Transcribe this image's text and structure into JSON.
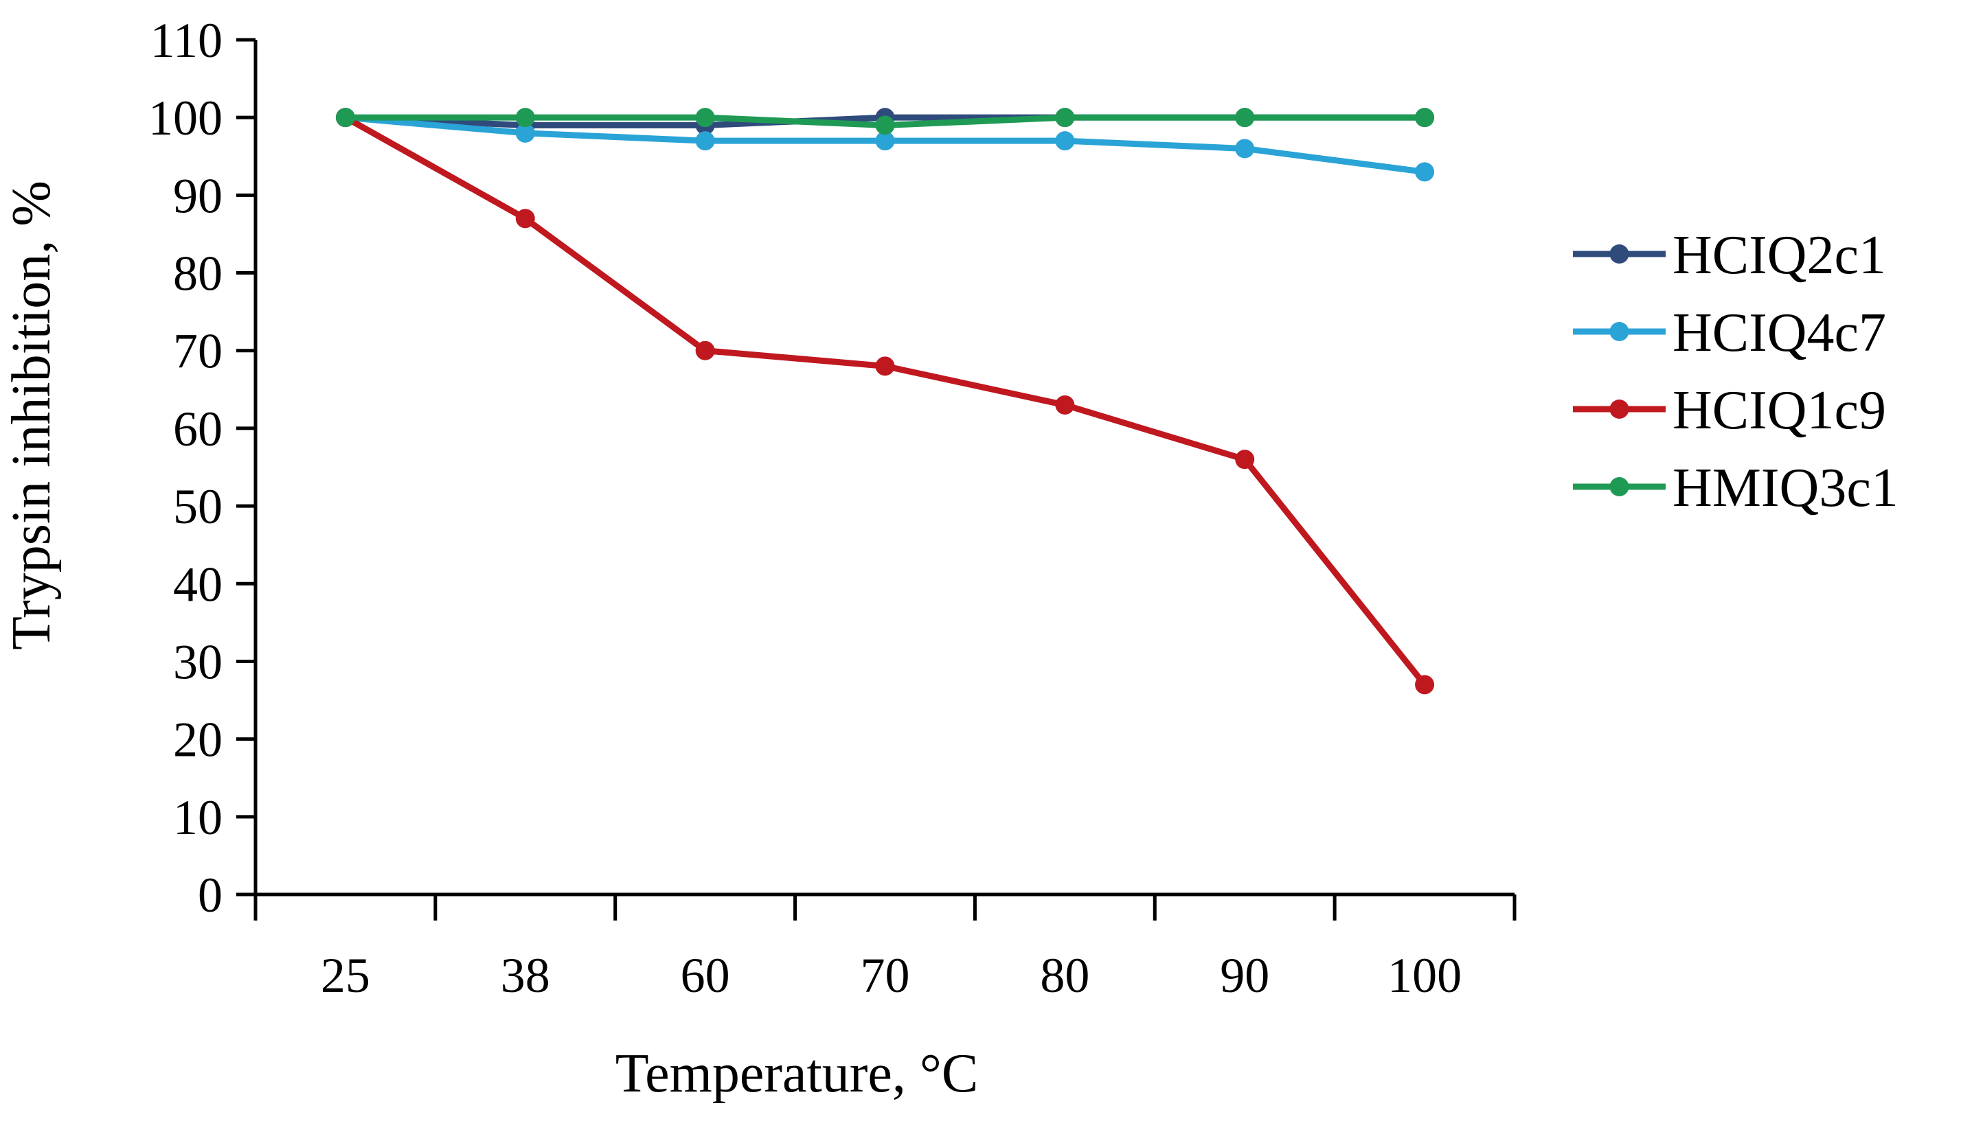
{
  "chart_data": {
    "type": "line",
    "title": "",
    "xlabel": "Temperature, °C",
    "ylabel": "Trypsin inhibition, %",
    "categories": [
      "25",
      "38",
      "60",
      "70",
      "80",
      "90",
      "100"
    ],
    "ylim": [
      0,
      110
    ],
    "yticks": [
      0,
      10,
      20,
      30,
      40,
      50,
      60,
      70,
      80,
      90,
      100,
      110
    ],
    "grid": false,
    "legend": "right",
    "series": [
      {
        "name": "HCIQ2c1",
        "color": "#2f4b7c",
        "values": [
          100,
          99,
          99,
          100,
          100,
          100,
          100
        ]
      },
      {
        "name": "HCIQ4c7",
        "color": "#2aa3d6",
        "values": [
          100,
          98,
          97,
          97,
          97,
          96,
          93
        ]
      },
      {
        "name": "HCIQ1c9",
        "color": "#c0181f",
        "values": [
          100,
          87,
          70,
          68,
          63,
          56,
          27
        ]
      },
      {
        "name": "HMIQ3c1",
        "color": "#1f9a55",
        "values": [
          100,
          100,
          100,
          99,
          100,
          100,
          100
        ]
      }
    ]
  }
}
